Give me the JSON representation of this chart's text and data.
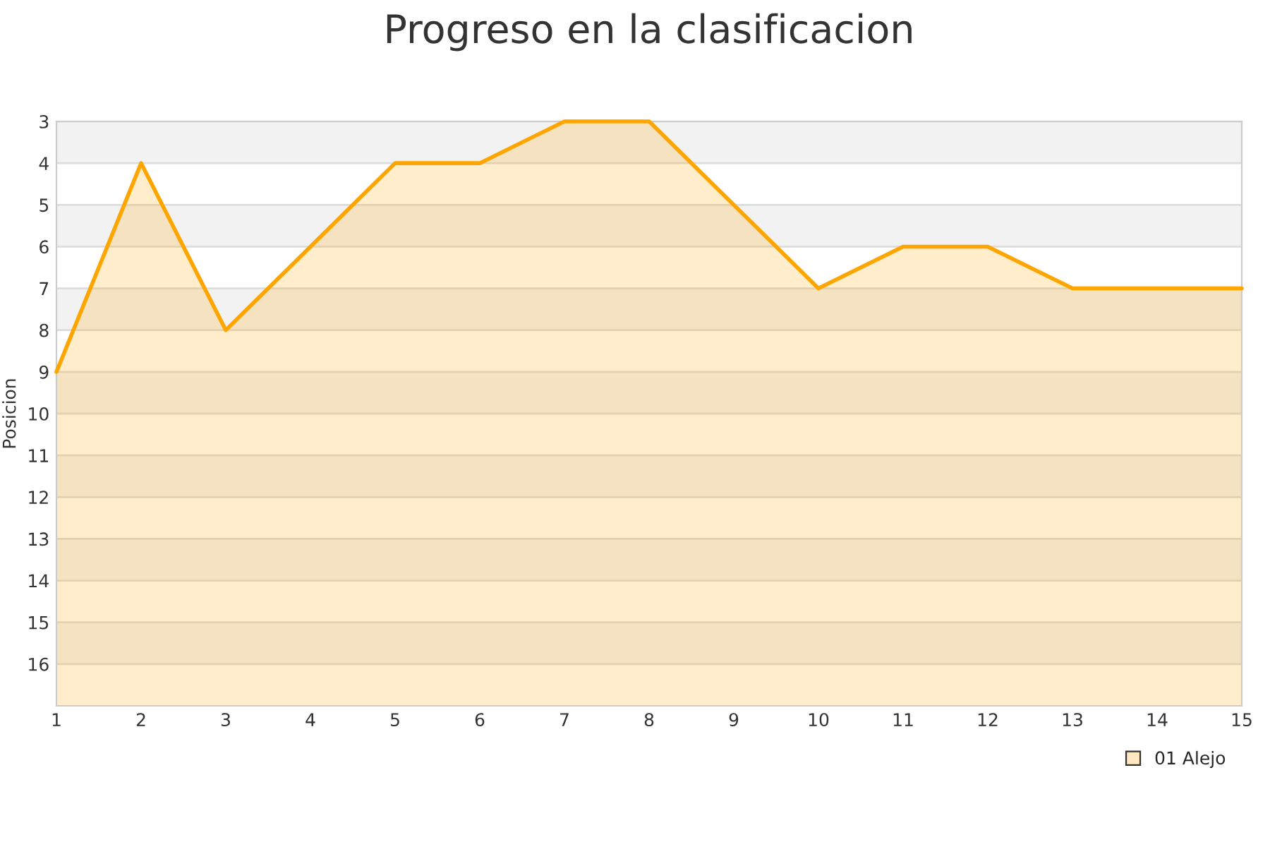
{
  "chart_data": {
    "type": "line",
    "title": "Progreso en la clasificacion",
    "ylabel": "Posicion",
    "x": [
      1,
      2,
      3,
      4,
      5,
      6,
      7,
      8,
      9,
      10,
      11,
      12,
      13,
      14,
      15
    ],
    "series": [
      {
        "name": "01 Alejo",
        "color": "#ffa500",
        "values": [
          9,
          4,
          8,
          6,
          4,
          4,
          3,
          3,
          5,
          7,
          6,
          6,
          7,
          7,
          7
        ],
        "lower": [
          9,
          4,
          8,
          6,
          4,
          4,
          3,
          3,
          5,
          7,
          6,
          6,
          7,
          7,
          7
        ],
        "upper": [
          17,
          17,
          17,
          17,
          17,
          17,
          17,
          17,
          17,
          17,
          17,
          17,
          17,
          17,
          17
        ]
      }
    ],
    "xlim": [
      1,
      15
    ],
    "xticks": [
      1,
      2,
      3,
      4,
      5,
      6,
      7,
      8,
      9,
      10,
      11,
      12,
      13,
      14,
      15
    ],
    "ylim": [
      17,
      3
    ],
    "yticks": [
      3,
      4,
      5,
      6,
      7,
      8,
      9,
      10,
      11,
      12,
      13,
      14,
      15,
      16
    ],
    "grid": "y",
    "legend": "bottom right"
  }
}
